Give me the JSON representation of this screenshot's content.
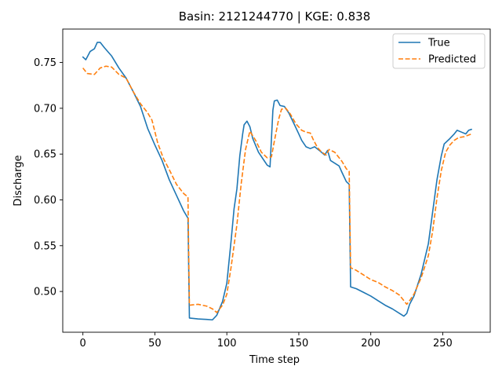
{
  "chart_data": {
    "type": "line",
    "title": "Basin: 2121244770  |  KGE: 0.838",
    "xlabel": "Time step",
    "ylabel": "Discharge",
    "xlim": [
      -14,
      283
    ],
    "ylim": [
      0.4555,
      0.7865
    ],
    "xticks": [
      0,
      50,
      100,
      150,
      200,
      250
    ],
    "yticks": [
      0.5,
      0.55,
      0.6,
      0.65,
      0.7,
      0.75
    ],
    "xtick_labels": [
      "0",
      "50",
      "100",
      "150",
      "200",
      "250"
    ],
    "ytick_labels": [
      "0.50",
      "0.55",
      "0.60",
      "0.65",
      "0.70",
      "0.75"
    ],
    "legend_position": "upper right",
    "grid": false,
    "series": [
      {
        "name": "True",
        "color": "#1f77b4",
        "style": "solid",
        "points": [
          [
            0,
            0.756
          ],
          [
            2,
            0.753
          ],
          [
            5,
            0.762
          ],
          [
            8,
            0.765
          ],
          [
            10,
            0.772
          ],
          [
            12,
            0.772
          ],
          [
            15,
            0.766
          ],
          [
            20,
            0.757
          ],
          [
            25,
            0.744
          ],
          [
            30,
            0.733
          ],
          [
            35,
            0.718
          ],
          [
            40,
            0.702
          ],
          [
            45,
            0.678
          ],
          [
            50,
            0.66
          ],
          [
            55,
            0.643
          ],
          [
            60,
            0.622
          ],
          [
            65,
            0.605
          ],
          [
            70,
            0.588
          ],
          [
            73,
            0.58
          ],
          [
            74,
            0.471
          ],
          [
            80,
            0.47
          ],
          [
            86,
            0.4695
          ],
          [
            90,
            0.469
          ],
          [
            93,
            0.474
          ],
          [
            97,
            0.489
          ],
          [
            100,
            0.509
          ],
          [
            103,
            0.556
          ],
          [
            105,
            0.59
          ],
          [
            107,
            0.612
          ],
          [
            109,
            0.648
          ],
          [
            111,
            0.672
          ],
          [
            112,
            0.682
          ],
          [
            114,
            0.686
          ],
          [
            116,
            0.68
          ],
          [
            118,
            0.667
          ],
          [
            122,
            0.652
          ],
          [
            125,
            0.645
          ],
          [
            128,
            0.638
          ],
          [
            130,
            0.636
          ],
          [
            132,
            0.698
          ],
          [
            133,
            0.708
          ],
          [
            135,
            0.709
          ],
          [
            137,
            0.703
          ],
          [
            140,
            0.702
          ],
          [
            143,
            0.695
          ],
          [
            147,
            0.682
          ],
          [
            150,
            0.672
          ],
          [
            152,
            0.665
          ],
          [
            155,
            0.658
          ],
          [
            158,
            0.656
          ],
          [
            161,
            0.658
          ],
          [
            165,
            0.653
          ],
          [
            168,
            0.649
          ],
          [
            170,
            0.654
          ],
          [
            172,
            0.643
          ],
          [
            175,
            0.64
          ],
          [
            178,
            0.637
          ],
          [
            180,
            0.63
          ],
          [
            183,
            0.62
          ],
          [
            185,
            0.617
          ],
          [
            186,
            0.505
          ],
          [
            190,
            0.503
          ],
          [
            195,
            0.499
          ],
          [
            200,
            0.495
          ],
          [
            205,
            0.49
          ],
          [
            210,
            0.485
          ],
          [
            215,
            0.481
          ],
          [
            220,
            0.476
          ],
          [
            223,
            0.473
          ],
          [
            225,
            0.476
          ],
          [
            227,
            0.486
          ],
          [
            230,
            0.495
          ],
          [
            235,
            0.519
          ],
          [
            240,
            0.552
          ],
          [
            243,
            0.587
          ],
          [
            246,
            0.622
          ],
          [
            249,
            0.648
          ],
          [
            251,
            0.661
          ],
          [
            255,
            0.667
          ],
          [
            258,
            0.672
          ],
          [
            260,
            0.676
          ],
          [
            263,
            0.674
          ],
          [
            266,
            0.672
          ],
          [
            268,
            0.676
          ],
          [
            270,
            0.677
          ]
        ]
      },
      {
        "name": "Predicted",
        "color": "#ff7f0e",
        "style": "dashed",
        "points": [
          [
            0,
            0.744
          ],
          [
            3,
            0.738
          ],
          [
            8,
            0.737
          ],
          [
            12,
            0.744
          ],
          [
            16,
            0.746
          ],
          [
            20,
            0.745
          ],
          [
            25,
            0.737
          ],
          [
            30,
            0.733
          ],
          [
            35,
            0.718
          ],
          [
            40,
            0.705
          ],
          [
            45,
            0.695
          ],
          [
            48,
            0.687
          ],
          [
            52,
            0.662
          ],
          [
            56,
            0.645
          ],
          [
            60,
            0.633
          ],
          [
            65,
            0.617
          ],
          [
            70,
            0.607
          ],
          [
            73,
            0.603
          ],
          [
            74,
            0.485
          ],
          [
            80,
            0.486
          ],
          [
            86,
            0.484
          ],
          [
            90,
            0.481
          ],
          [
            93,
            0.477
          ],
          [
            97,
            0.485
          ],
          [
            100,
            0.497
          ],
          [
            103,
            0.527
          ],
          [
            107,
            0.573
          ],
          [
            110,
            0.618
          ],
          [
            113,
            0.655
          ],
          [
            116,
            0.675
          ],
          [
            120,
            0.665
          ],
          [
            124,
            0.652
          ],
          [
            128,
            0.646
          ],
          [
            131,
            0.647
          ],
          [
            133,
            0.664
          ],
          [
            136,
            0.688
          ],
          [
            138,
            0.699
          ],
          [
            141,
            0.7
          ],
          [
            144,
            0.694
          ],
          [
            148,
            0.683
          ],
          [
            152,
            0.676
          ],
          [
            155,
            0.674
          ],
          [
            158,
            0.673
          ],
          [
            160,
            0.666
          ],
          [
            163,
            0.657
          ],
          [
            166,
            0.652
          ],
          [
            169,
            0.649
          ],
          [
            171,
            0.655
          ],
          [
            175,
            0.652
          ],
          [
            180,
            0.642
          ],
          [
            183,
            0.634
          ],
          [
            185,
            0.631
          ],
          [
            186,
            0.526
          ],
          [
            190,
            0.523
          ],
          [
            195,
            0.518
          ],
          [
            200,
            0.513
          ],
          [
            205,
            0.51
          ],
          [
            210,
            0.505
          ],
          [
            215,
            0.501
          ],
          [
            220,
            0.496
          ],
          [
            223,
            0.49
          ],
          [
            225,
            0.486
          ],
          [
            227,
            0.49
          ],
          [
            230,
            0.497
          ],
          [
            235,
            0.515
          ],
          [
            240,
            0.539
          ],
          [
            243,
            0.566
          ],
          [
            246,
            0.602
          ],
          [
            249,
            0.632
          ],
          [
            252,
            0.652
          ],
          [
            255,
            0.66
          ],
          [
            258,
            0.665
          ],
          [
            261,
            0.668
          ],
          [
            265,
            0.669
          ],
          [
            270,
            0.672
          ]
        ]
      }
    ]
  }
}
